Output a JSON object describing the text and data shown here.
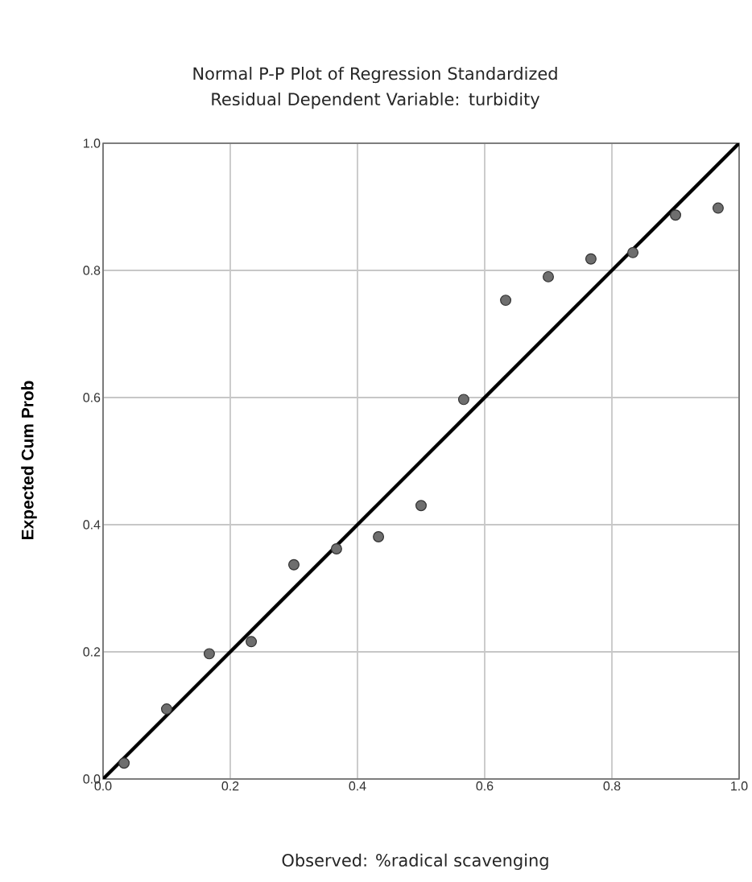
{
  "chart_data": {
    "type": "scatter",
    "title": "Normal P-P Plot of Regression Standardized Residual Dependent Variable: turbidity",
    "xlabel": "Observed: %radical scavenging",
    "ylabel": "Expected Cum Prob",
    "xlim": [
      0,
      1
    ],
    "ylim": [
      0,
      1
    ],
    "xticks": [
      {
        "value": 0,
        "label": "0.0"
      },
      0.2,
      0.4,
      0.6,
      0.8,
      {
        "value": 1,
        "label": "1.0"
      }
    ],
    "yticks": [
      {
        "value": 0,
        "label": "0.0"
      },
      0.2,
      0.4,
      0.6,
      0.8,
      {
        "value": 1,
        "label": "1.0"
      }
    ],
    "grid": true,
    "series": [
      {
        "marker": "circle",
        "color": "#6e6e6e",
        "x": [
          0.033,
          0.1,
          0.167,
          0.233,
          0.3,
          0.367,
          0.433,
          0.5,
          0.567,
          0.633,
          0.7,
          0.767,
          0.833,
          0.9,
          0.967
        ],
        "values": [
          0.025,
          0.11,
          0.197,
          0.216,
          0.337,
          0.362,
          0.381,
          0.43,
          0.597,
          0.753,
          0.79,
          0.818,
          0.828,
          0.887,
          0.898
        ]
      },
      {
        "type": "line",
        "marker": "none",
        "color": "#000000",
        "x": [
          0,
          1
        ],
        "values": [
          0,
          1
        ]
      }
    ]
  }
}
